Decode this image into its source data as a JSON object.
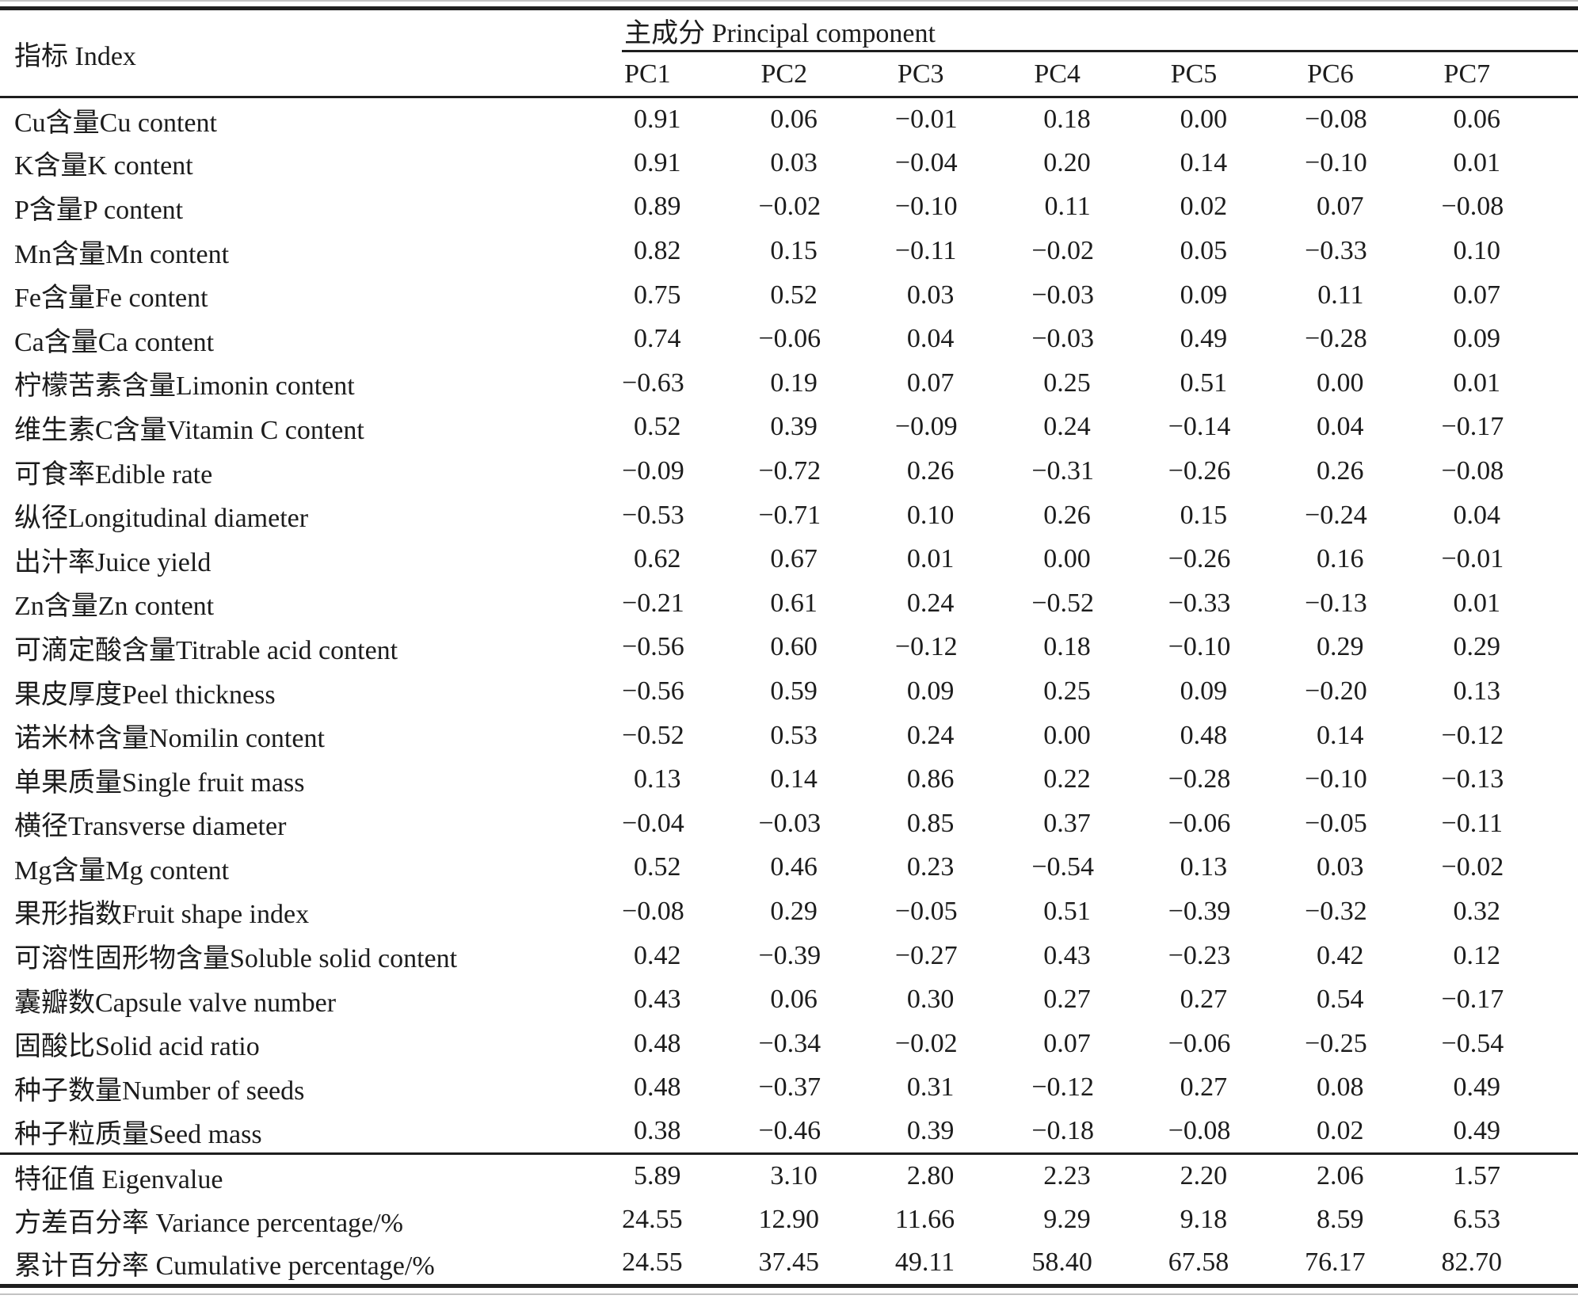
{
  "table": {
    "index_header": "指标 Index",
    "group_header": "主成分 Principal component",
    "pc_headers": [
      "PC1",
      "PC2",
      "PC3",
      "PC4",
      "PC5",
      "PC6",
      "PC7"
    ],
    "rows": [
      {
        "label": "Cu含量Cu content",
        "values": [
          "0.91",
          "0.06",
          "−0.01",
          "0.18",
          "0.00",
          "−0.08",
          "0.06"
        ]
      },
      {
        "label": "K含量K content",
        "values": [
          "0.91",
          "0.03",
          "−0.04",
          "0.20",
          "0.14",
          "−0.10",
          "0.01"
        ]
      },
      {
        "label": "P含量P content",
        "values": [
          "0.89",
          "−0.02",
          "−0.10",
          "0.11",
          "0.02",
          "0.07",
          "−0.08"
        ]
      },
      {
        "label": "Mn含量Mn content",
        "values": [
          "0.82",
          "0.15",
          "−0.11",
          "−0.02",
          "0.05",
          "−0.33",
          "0.10"
        ]
      },
      {
        "label": "Fe含量Fe content",
        "values": [
          "0.75",
          "0.52",
          "0.03",
          "−0.03",
          "0.09",
          "0.11",
          "0.07"
        ]
      },
      {
        "label": "Ca含量Ca content",
        "values": [
          "0.74",
          "−0.06",
          "0.04",
          "−0.03",
          "0.49",
          "−0.28",
          "0.09"
        ]
      },
      {
        "label": "柠檬苦素含量Limonin content",
        "values": [
          "−0.63",
          "0.19",
          "0.07",
          "0.25",
          "0.51",
          "0.00",
          "0.01"
        ]
      },
      {
        "label": "维生素C含量Vitamin C content",
        "values": [
          "0.52",
          "0.39",
          "−0.09",
          "0.24",
          "−0.14",
          "0.04",
          "−0.17"
        ]
      },
      {
        "label": "可食率Edible rate",
        "values": [
          "−0.09",
          "−0.72",
          "0.26",
          "−0.31",
          "−0.26",
          "0.26",
          "−0.08"
        ]
      },
      {
        "label": "纵径Longitudinal diameter",
        "values": [
          "−0.53",
          "−0.71",
          "0.10",
          "0.26",
          "0.15",
          "−0.24",
          "0.04"
        ]
      },
      {
        "label": "出汁率Juice yield",
        "values": [
          "0.62",
          "0.67",
          "0.01",
          "0.00",
          "−0.26",
          "0.16",
          "−0.01"
        ]
      },
      {
        "label": "Zn含量Zn content",
        "values": [
          "−0.21",
          "0.61",
          "0.24",
          "−0.52",
          "−0.33",
          "−0.13",
          "0.01"
        ]
      },
      {
        "label": "可滴定酸含量Titrable acid content",
        "values": [
          "−0.56",
          "0.60",
          "−0.12",
          "0.18",
          "−0.10",
          "0.29",
          "0.29"
        ]
      },
      {
        "label": "果皮厚度Peel thickness",
        "values": [
          "−0.56",
          "0.59",
          "0.09",
          "0.25",
          "0.09",
          "−0.20",
          "0.13"
        ]
      },
      {
        "label": "诺米林含量Nomilin content",
        "values": [
          "−0.52",
          "0.53",
          "0.24",
          "0.00",
          "0.48",
          "0.14",
          "−0.12"
        ]
      },
      {
        "label": "单果质量Single fruit mass",
        "values": [
          "0.13",
          "0.14",
          "0.86",
          "0.22",
          "−0.28",
          "−0.10",
          "−0.13"
        ]
      },
      {
        "label": "横径Transverse diameter",
        "values": [
          "−0.04",
          "−0.03",
          "0.85",
          "0.37",
          "−0.06",
          "−0.05",
          "−0.11"
        ]
      },
      {
        "label": "Mg含量Mg content",
        "values": [
          "0.52",
          "0.46",
          "0.23",
          "−0.54",
          "0.13",
          "0.03",
          "−0.02"
        ]
      },
      {
        "label": "果形指数Fruit shape index",
        "values": [
          "−0.08",
          "0.29",
          "−0.05",
          "0.51",
          "−0.39",
          "−0.32",
          "0.32"
        ]
      },
      {
        "label": "可溶性固形物含量Soluble solid content",
        "values": [
          "0.42",
          "−0.39",
          "−0.27",
          "0.43",
          "−0.23",
          "0.42",
          "0.12"
        ]
      },
      {
        "label": "囊瓣数Capsule valve number",
        "values": [
          "0.43",
          "0.06",
          "0.30",
          "0.27",
          "0.27",
          "0.54",
          "−0.17"
        ]
      },
      {
        "label": "固酸比Solid acid ratio",
        "values": [
          "0.48",
          "−0.34",
          "−0.02",
          "0.07",
          "−0.06",
          "−0.25",
          "−0.54"
        ]
      },
      {
        "label": "种子数量Number of seeds",
        "values": [
          "0.48",
          "−0.37",
          "0.31",
          "−0.12",
          "0.27",
          "0.08",
          "0.49"
        ]
      },
      {
        "label": "种子粒质量Seed mass",
        "values": [
          "0.38",
          "−0.46",
          "0.39",
          "−0.18",
          "−0.08",
          "0.02",
          "0.49"
        ]
      }
    ],
    "summary_rows": [
      {
        "label": "特征值 Eigenvalue",
        "values": [
          "5.89",
          "3.10",
          "2.80",
          "2.23",
          "2.20",
          "2.06",
          "1.57"
        ]
      },
      {
        "label": "方差百分率 Variance percentage/%",
        "values": [
          "24.55",
          "12.90",
          "11.66",
          "9.29",
          "9.18",
          "8.59",
          "6.53"
        ]
      },
      {
        "label": "累计百分率 Cumulative percentage/%",
        "values": [
          "24.55",
          "37.45",
          "49.11",
          "58.40",
          "67.58",
          "76.17",
          "82.70"
        ]
      }
    ]
  }
}
